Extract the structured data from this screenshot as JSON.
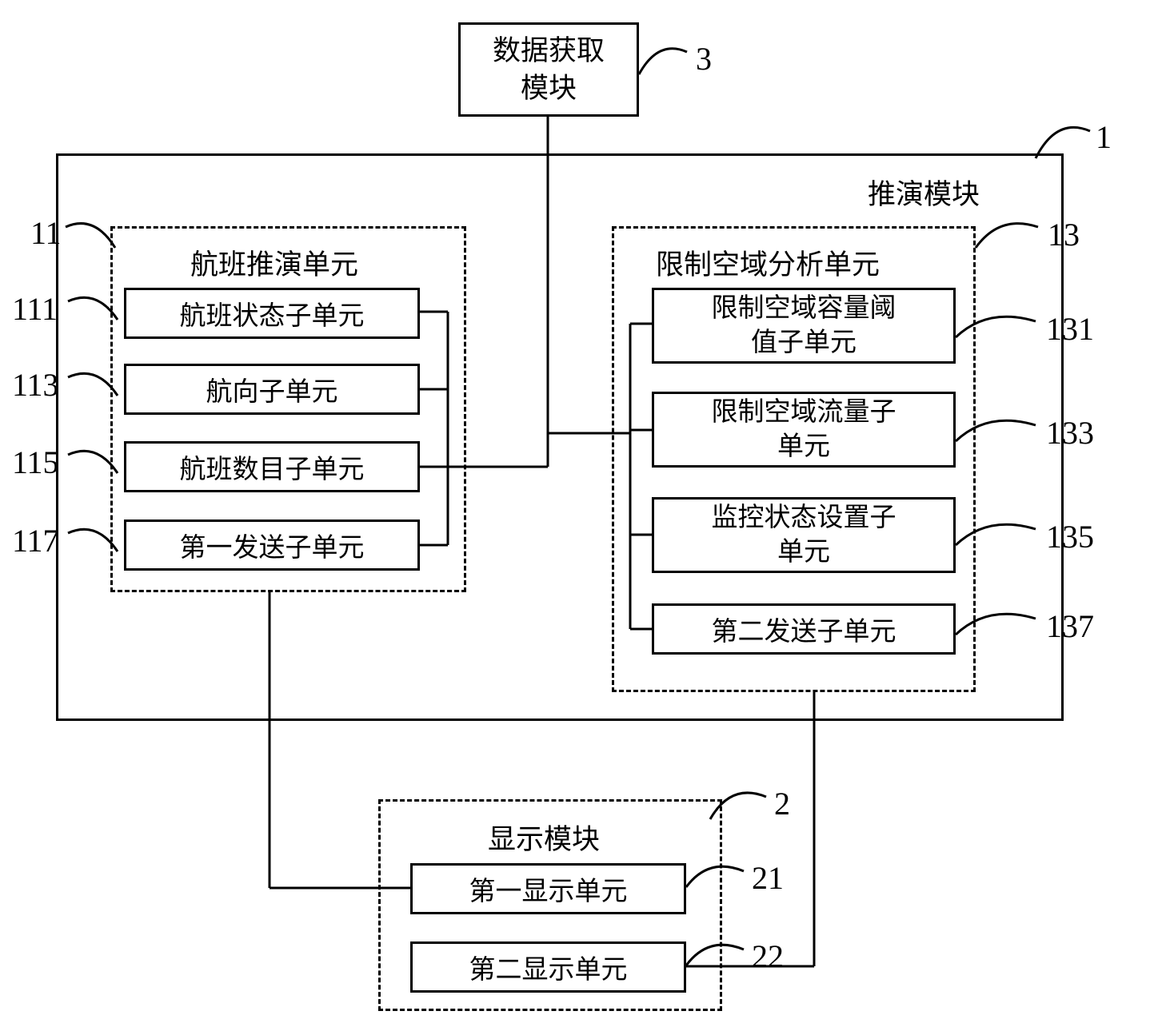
{
  "type": "flowchart",
  "background_color": "#ffffff",
  "stroke_color": "#000000",
  "font_family": "SimSun",
  "base_font_size_pt": 26,
  "nodes": {
    "n3": {
      "label": "数据获取\n模块",
      "num": "3"
    },
    "n1": {
      "label": "推演模块",
      "num": "1"
    },
    "n11": {
      "label": "航班推演单元",
      "num": "11"
    },
    "n111": {
      "label": "航班状态子单元",
      "num": "111"
    },
    "n113": {
      "label": "航向子单元",
      "num": "113"
    },
    "n115": {
      "label": "航班数目子单元",
      "num": "115"
    },
    "n117": {
      "label": "第一发送子单元",
      "num": "117"
    },
    "n13": {
      "label": "限制空域分析单元",
      "num": "13"
    },
    "n131": {
      "label": "限制空域容量阈\n值子单元",
      "num": "131"
    },
    "n133": {
      "label": "限制空域流量子\n单元",
      "num": "133"
    },
    "n135": {
      "label": "监控状态设置子\n单元",
      "num": "135"
    },
    "n137": {
      "label": "第二发送子单元",
      "num": "137"
    },
    "n2": {
      "label": "显示模块",
      "num": "2"
    },
    "n21": {
      "label": "第一显示单元",
      "num": "21"
    },
    "n22": {
      "label": "第二显示单元",
      "num": "22"
    }
  }
}
